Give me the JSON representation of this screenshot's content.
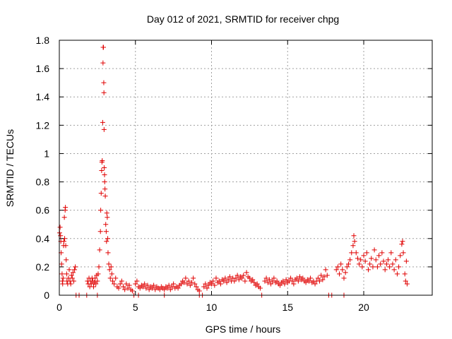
{
  "chart_data": {
    "type": "scatter",
    "title": "Day 012 of 2021, SRMTID for receiver chpg",
    "xlabel": "GPS time / hours",
    "ylabel": "SRMTID / TECUs",
    "xlim": [
      0,
      24.5
    ],
    "ylim": [
      0,
      1.8
    ],
    "xticks": [
      0,
      5,
      10,
      15,
      20
    ],
    "xtick_labels": [
      "0",
      "5",
      "10",
      "15",
      "20"
    ],
    "yticks": [
      0,
      0.2,
      0.4,
      0.6,
      0.8,
      1.0,
      1.2,
      1.4,
      1.6,
      1.8
    ],
    "ytick_labels": [
      "0",
      "0.2",
      "0.4",
      "0.6",
      "0.8",
      "1",
      "1.2",
      "1.4",
      "1.6",
      "1.8"
    ],
    "grid": true,
    "marker": "+",
    "series": [
      {
        "name": "SRMTID",
        "color": "#e00000",
        "points": [
          [
            0.02,
            0.44
          ],
          [
            0.05,
            0.48
          ],
          [
            0.08,
            0.42
          ],
          [
            0.1,
            0.38
          ],
          [
            0.12,
            0.3
          ],
          [
            0.15,
            0.22
          ],
          [
            0.18,
            0.15
          ],
          [
            0.2,
            0.1
          ],
          [
            0.22,
            0.08
          ],
          [
            0.25,
            0.12
          ],
          [
            0.28,
            0.35
          ],
          [
            0.3,
            0.38
          ],
          [
            0.33,
            0.55
          ],
          [
            0.35,
            0.4
          ],
          [
            0.38,
            0.6
          ],
          [
            0.4,
            0.62
          ],
          [
            0.42,
            0.35
          ],
          [
            0.45,
            0.25
          ],
          [
            0.48,
            0.15
          ],
          [
            0.5,
            0.1
          ],
          [
            0.55,
            0.08
          ],
          [
            0.6,
            0.12
          ],
          [
            0.65,
            0.18
          ],
          [
            0.7,
            0.1
          ],
          [
            0.75,
            0.08
          ],
          [
            0.8,
            0.14
          ],
          [
            0.85,
            0.12
          ],
          [
            0.9,
            0.16
          ],
          [
            0.95,
            0.1
          ],
          [
            1.0,
            0.18
          ],
          [
            1.05,
            0.2
          ],
          [
            1.1,
            0.0
          ],
          [
            1.3,
            0.0
          ],
          [
            1.8,
            0.0
          ],
          [
            2.5,
            0.0
          ],
          [
            1.85,
            0.1
          ],
          [
            1.9,
            0.08
          ],
          [
            1.95,
            0.12
          ],
          [
            2.0,
            0.06
          ],
          [
            2.05,
            0.1
          ],
          [
            2.1,
            0.08
          ],
          [
            2.15,
            0.12
          ],
          [
            2.2,
            0.1
          ],
          [
            2.25,
            0.06
          ],
          [
            2.3,
            0.09
          ],
          [
            2.35,
            0.12
          ],
          [
            2.4,
            0.08
          ],
          [
            2.45,
            0.14
          ],
          [
            2.5,
            0.1
          ],
          [
            2.55,
            0.15
          ],
          [
            2.6,
            0.2
          ],
          [
            2.65,
            0.32
          ],
          [
            2.7,
            0.45
          ],
          [
            2.72,
            0.6
          ],
          [
            2.75,
            0.72
          ],
          [
            2.78,
            0.88
          ],
          [
            2.8,
            0.94
          ],
          [
            2.82,
            0.95
          ],
          [
            2.85,
            1.22
          ],
          [
            2.87,
            1.64
          ],
          [
            2.88,
            1.75
          ],
          [
            2.9,
            1.75
          ],
          [
            2.92,
            1.5
          ],
          [
            2.93,
            1.43
          ],
          [
            2.94,
            1.17
          ],
          [
            2.95,
            0.9
          ],
          [
            2.97,
            0.85
          ],
          [
            2.98,
            0.8
          ],
          [
            3.0,
            0.75
          ],
          [
            3.02,
            0.7
          ],
          [
            3.05,
            0.5
          ],
          [
            3.08,
            0.45
          ],
          [
            3.1,
            0.38
          ],
          [
            3.12,
            0.58
          ],
          [
            3.15,
            0.55
          ],
          [
            3.18,
            0.4
          ],
          [
            3.2,
            0.3
          ],
          [
            3.25,
            0.22
          ],
          [
            3.3,
            0.18
          ],
          [
            3.35,
            0.12
          ],
          [
            3.4,
            0.2
          ],
          [
            3.45,
            0.15
          ],
          [
            3.5,
            0.1
          ],
          [
            3.6,
            0.08
          ],
          [
            3.7,
            0.12
          ],
          [
            3.8,
            0.06
          ],
          [
            3.9,
            0.05
          ],
          [
            4.0,
            0.08
          ],
          [
            4.1,
            0.1
          ],
          [
            4.2,
            0.06
          ],
          [
            4.3,
            0.04
          ],
          [
            4.4,
            0.08
          ],
          [
            4.5,
            0.05
          ],
          [
            4.6,
            0.07
          ],
          [
            4.7,
            0.04
          ],
          [
            4.8,
            0.03
          ],
          [
            4.9,
            0.0
          ],
          [
            5.2,
            0.0
          ],
          [
            6.9,
            0.0
          ],
          [
            9.2,
            0.0
          ],
          [
            9.4,
            0.0
          ],
          [
            5.0,
            0.08
          ],
          [
            5.1,
            0.1
          ],
          [
            5.2,
            0.06
          ],
          [
            5.3,
            0.05
          ],
          [
            5.4,
            0.07
          ],
          [
            5.5,
            0.06
          ],
          [
            5.6,
            0.08
          ],
          [
            5.7,
            0.05
          ],
          [
            5.8,
            0.07
          ],
          [
            5.9,
            0.04
          ],
          [
            6.0,
            0.06
          ],
          [
            6.1,
            0.05
          ],
          [
            6.2,
            0.07
          ],
          [
            6.3,
            0.04
          ],
          [
            6.4,
            0.06
          ],
          [
            6.5,
            0.05
          ],
          [
            6.6,
            0.04
          ],
          [
            6.7,
            0.06
          ],
          [
            6.8,
            0.05
          ],
          [
            6.9,
            0.04
          ],
          [
            7.0,
            0.06
          ],
          [
            7.1,
            0.05
          ],
          [
            7.2,
            0.07
          ],
          [
            7.3,
            0.04
          ],
          [
            7.4,
            0.06
          ],
          [
            7.5,
            0.08
          ],
          [
            7.6,
            0.05
          ],
          [
            7.7,
            0.06
          ],
          [
            7.8,
            0.05
          ],
          [
            7.9,
            0.07
          ],
          [
            8.0,
            0.08
          ],
          [
            8.1,
            0.1
          ],
          [
            8.2,
            0.09
          ],
          [
            8.3,
            0.12
          ],
          [
            8.4,
            0.08
          ],
          [
            8.5,
            0.1
          ],
          [
            8.6,
            0.07
          ],
          [
            8.7,
            0.09
          ],
          [
            8.8,
            0.12
          ],
          [
            8.9,
            0.08
          ],
          [
            9.0,
            0.06
          ],
          [
            9.1,
            0.04
          ],
          [
            9.2,
            0.03
          ],
          [
            9.5,
            0.06
          ],
          [
            9.6,
            0.08
          ],
          [
            9.7,
            0.05
          ],
          [
            9.8,
            0.07
          ],
          [
            9.9,
            0.09
          ],
          [
            10.0,
            0.08
          ],
          [
            10.1,
            0.1
          ],
          [
            10.2,
            0.07
          ],
          [
            10.3,
            0.12
          ],
          [
            10.4,
            0.09
          ],
          [
            10.5,
            0.1
          ],
          [
            10.6,
            0.08
          ],
          [
            10.7,
            0.11
          ],
          [
            10.8,
            0.1
          ],
          [
            10.9,
            0.12
          ],
          [
            11.0,
            0.09
          ],
          [
            11.1,
            0.11
          ],
          [
            11.2,
            0.13
          ],
          [
            11.3,
            0.1
          ],
          [
            11.4,
            0.12
          ],
          [
            11.5,
            0.1
          ],
          [
            11.6,
            0.12
          ],
          [
            11.7,
            0.14
          ],
          [
            11.8,
            0.11
          ],
          [
            11.9,
            0.13
          ],
          [
            12.0,
            0.12
          ],
          [
            12.1,
            0.14
          ],
          [
            12.2,
            0.1
          ],
          [
            12.3,
            0.16
          ],
          [
            12.4,
            0.13
          ],
          [
            12.5,
            0.12
          ],
          [
            12.6,
            0.1
          ],
          [
            12.7,
            0.11
          ],
          [
            12.8,
            0.09
          ],
          [
            12.9,
            0.07
          ],
          [
            13.0,
            0.08
          ],
          [
            13.1,
            0.06
          ],
          [
            13.2,
            0.05
          ],
          [
            13.3,
            0.0
          ],
          [
            17.7,
            0.0
          ],
          [
            17.9,
            0.0
          ],
          [
            18.7,
            0.0
          ],
          [
            13.5,
            0.1
          ],
          [
            13.6,
            0.12
          ],
          [
            13.7,
            0.09
          ],
          [
            13.8,
            0.11
          ],
          [
            13.9,
            0.08
          ],
          [
            14.0,
            0.1
          ],
          [
            14.1,
            0.12
          ],
          [
            14.2,
            0.09
          ],
          [
            14.3,
            0.1
          ],
          [
            14.4,
            0.08
          ],
          [
            14.5,
            0.07
          ],
          [
            14.6,
            0.09
          ],
          [
            14.7,
            0.1
          ],
          [
            14.8,
            0.08
          ],
          [
            14.9,
            0.11
          ],
          [
            15.0,
            0.09
          ],
          [
            15.1,
            0.1
          ],
          [
            15.2,
            0.12
          ],
          [
            15.3,
            0.1
          ],
          [
            15.4,
            0.08
          ],
          [
            15.5,
            0.11
          ],
          [
            15.6,
            0.12
          ],
          [
            15.7,
            0.1
          ],
          [
            15.8,
            0.13
          ],
          [
            15.9,
            0.11
          ],
          [
            16.0,
            0.12
          ],
          [
            16.1,
            0.1
          ],
          [
            16.2,
            0.09
          ],
          [
            16.3,
            0.11
          ],
          [
            16.4,
            0.1
          ],
          [
            16.5,
            0.12
          ],
          [
            16.6,
            0.09
          ],
          [
            16.7,
            0.1
          ],
          [
            16.8,
            0.08
          ],
          [
            16.9,
            0.1
          ],
          [
            17.0,
            0.12
          ],
          [
            17.1,
            0.1
          ],
          [
            17.2,
            0.14
          ],
          [
            17.3,
            0.11
          ],
          [
            17.4,
            0.13
          ],
          [
            17.5,
            0.18
          ],
          [
            17.6,
            0.14
          ],
          [
            18.2,
            0.18
          ],
          [
            18.3,
            0.2
          ],
          [
            18.4,
            0.15
          ],
          [
            18.5,
            0.22
          ],
          [
            18.6,
            0.18
          ],
          [
            18.7,
            0.12
          ],
          [
            18.8,
            0.16
          ],
          [
            18.9,
            0.2
          ],
          [
            19.0,
            0.22
          ],
          [
            19.1,
            0.25
          ],
          [
            19.2,
            0.3
          ],
          [
            19.3,
            0.35
          ],
          [
            19.35,
            0.42
          ],
          [
            19.4,
            0.38
          ],
          [
            19.5,
            0.3
          ],
          [
            19.6,
            0.26
          ],
          [
            19.7,
            0.22
          ],
          [
            19.8,
            0.25
          ],
          [
            19.9,
            0.2
          ],
          [
            20.0,
            0.28
          ],
          [
            20.1,
            0.24
          ],
          [
            20.2,
            0.3
          ],
          [
            20.3,
            0.18
          ],
          [
            20.4,
            0.22
          ],
          [
            20.5,
            0.26
          ],
          [
            20.6,
            0.2
          ],
          [
            20.7,
            0.32
          ],
          [
            20.8,
            0.25
          ],
          [
            20.9,
            0.2
          ],
          [
            21.0,
            0.28
          ],
          [
            21.1,
            0.22
          ],
          [
            21.2,
            0.3
          ],
          [
            21.3,
            0.24
          ],
          [
            21.4,
            0.18
          ],
          [
            21.5,
            0.22
          ],
          [
            21.6,
            0.25
          ],
          [
            21.7,
            0.2
          ],
          [
            21.8,
            0.3
          ],
          [
            21.9,
            0.22
          ],
          [
            22.0,
            0.18
          ],
          [
            22.1,
            0.25
          ],
          [
            22.2,
            0.15
          ],
          [
            22.3,
            0.2
          ],
          [
            22.4,
            0.28
          ],
          [
            22.5,
            0.36
          ],
          [
            22.55,
            0.38
          ],
          [
            22.6,
            0.3
          ],
          [
            22.7,
            0.15
          ],
          [
            22.75,
            0.1
          ],
          [
            22.8,
            0.24
          ],
          [
            22.85,
            0.08
          ]
        ]
      }
    ]
  }
}
